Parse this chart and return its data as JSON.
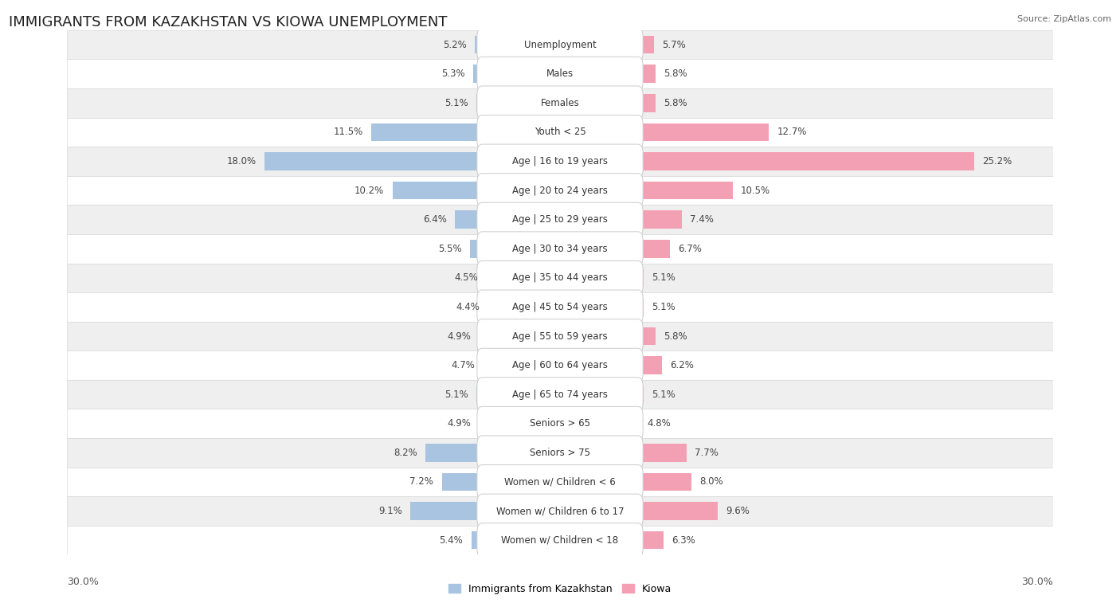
{
  "title": "IMMIGRANTS FROM KAZAKHSTAN VS KIOWA UNEMPLOYMENT",
  "source": "Source: ZipAtlas.com",
  "categories": [
    "Unemployment",
    "Males",
    "Females",
    "Youth < 25",
    "Age | 16 to 19 years",
    "Age | 20 to 24 years",
    "Age | 25 to 29 years",
    "Age | 30 to 34 years",
    "Age | 35 to 44 years",
    "Age | 45 to 54 years",
    "Age | 55 to 59 years",
    "Age | 60 to 64 years",
    "Age | 65 to 74 years",
    "Seniors > 65",
    "Seniors > 75",
    "Women w/ Children < 6",
    "Women w/ Children 6 to 17",
    "Women w/ Children < 18"
  ],
  "left_values": [
    5.2,
    5.3,
    5.1,
    11.5,
    18.0,
    10.2,
    6.4,
    5.5,
    4.5,
    4.4,
    4.9,
    4.7,
    5.1,
    4.9,
    8.2,
    7.2,
    9.1,
    5.4
  ],
  "right_values": [
    5.7,
    5.8,
    5.8,
    12.7,
    25.2,
    10.5,
    7.4,
    6.7,
    5.1,
    5.1,
    5.8,
    6.2,
    5.1,
    4.8,
    7.7,
    8.0,
    9.6,
    6.3
  ],
  "left_color": "#a8c4e0",
  "right_color": "#f4a0b4",
  "max_val": 30.0,
  "legend_left": "Immigrants from Kazakhstan",
  "legend_right": "Kiowa",
  "title_fontsize": 13,
  "label_fontsize": 8.5,
  "value_fontsize": 8.5,
  "axis_fontsize": 9,
  "row_colors": [
    "#efefef",
    "#ffffff"
  ]
}
